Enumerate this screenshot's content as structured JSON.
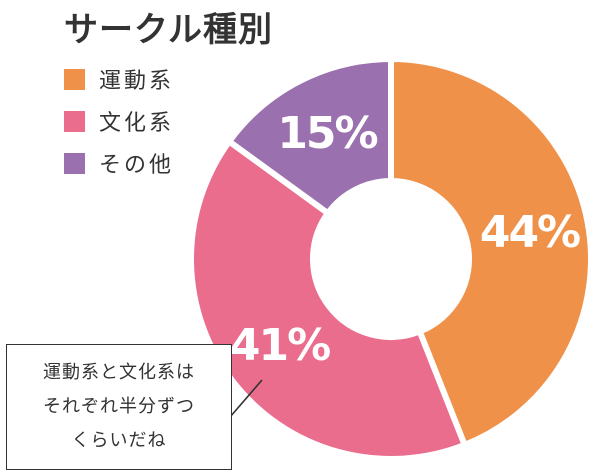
{
  "chart_data": {
    "type": "pie",
    "title": "サークル種別",
    "donut": true,
    "legend_position": "top-left",
    "slices": [
      {
        "label": "運動系",
        "value": 44,
        "value_label": "44%",
        "color": "#F0914A"
      },
      {
        "label": "文化系",
        "value": 41,
        "value_label": "41%",
        "color": "#EA6D8D"
      },
      {
        "label": "その他",
        "value": 15,
        "value_label": "15%",
        "color": "#9B70AF"
      }
    ]
  },
  "callout": {
    "lines": [
      "運動系と文化系は",
      "それぞれ半分ずつ",
      "くらいだね"
    ]
  }
}
